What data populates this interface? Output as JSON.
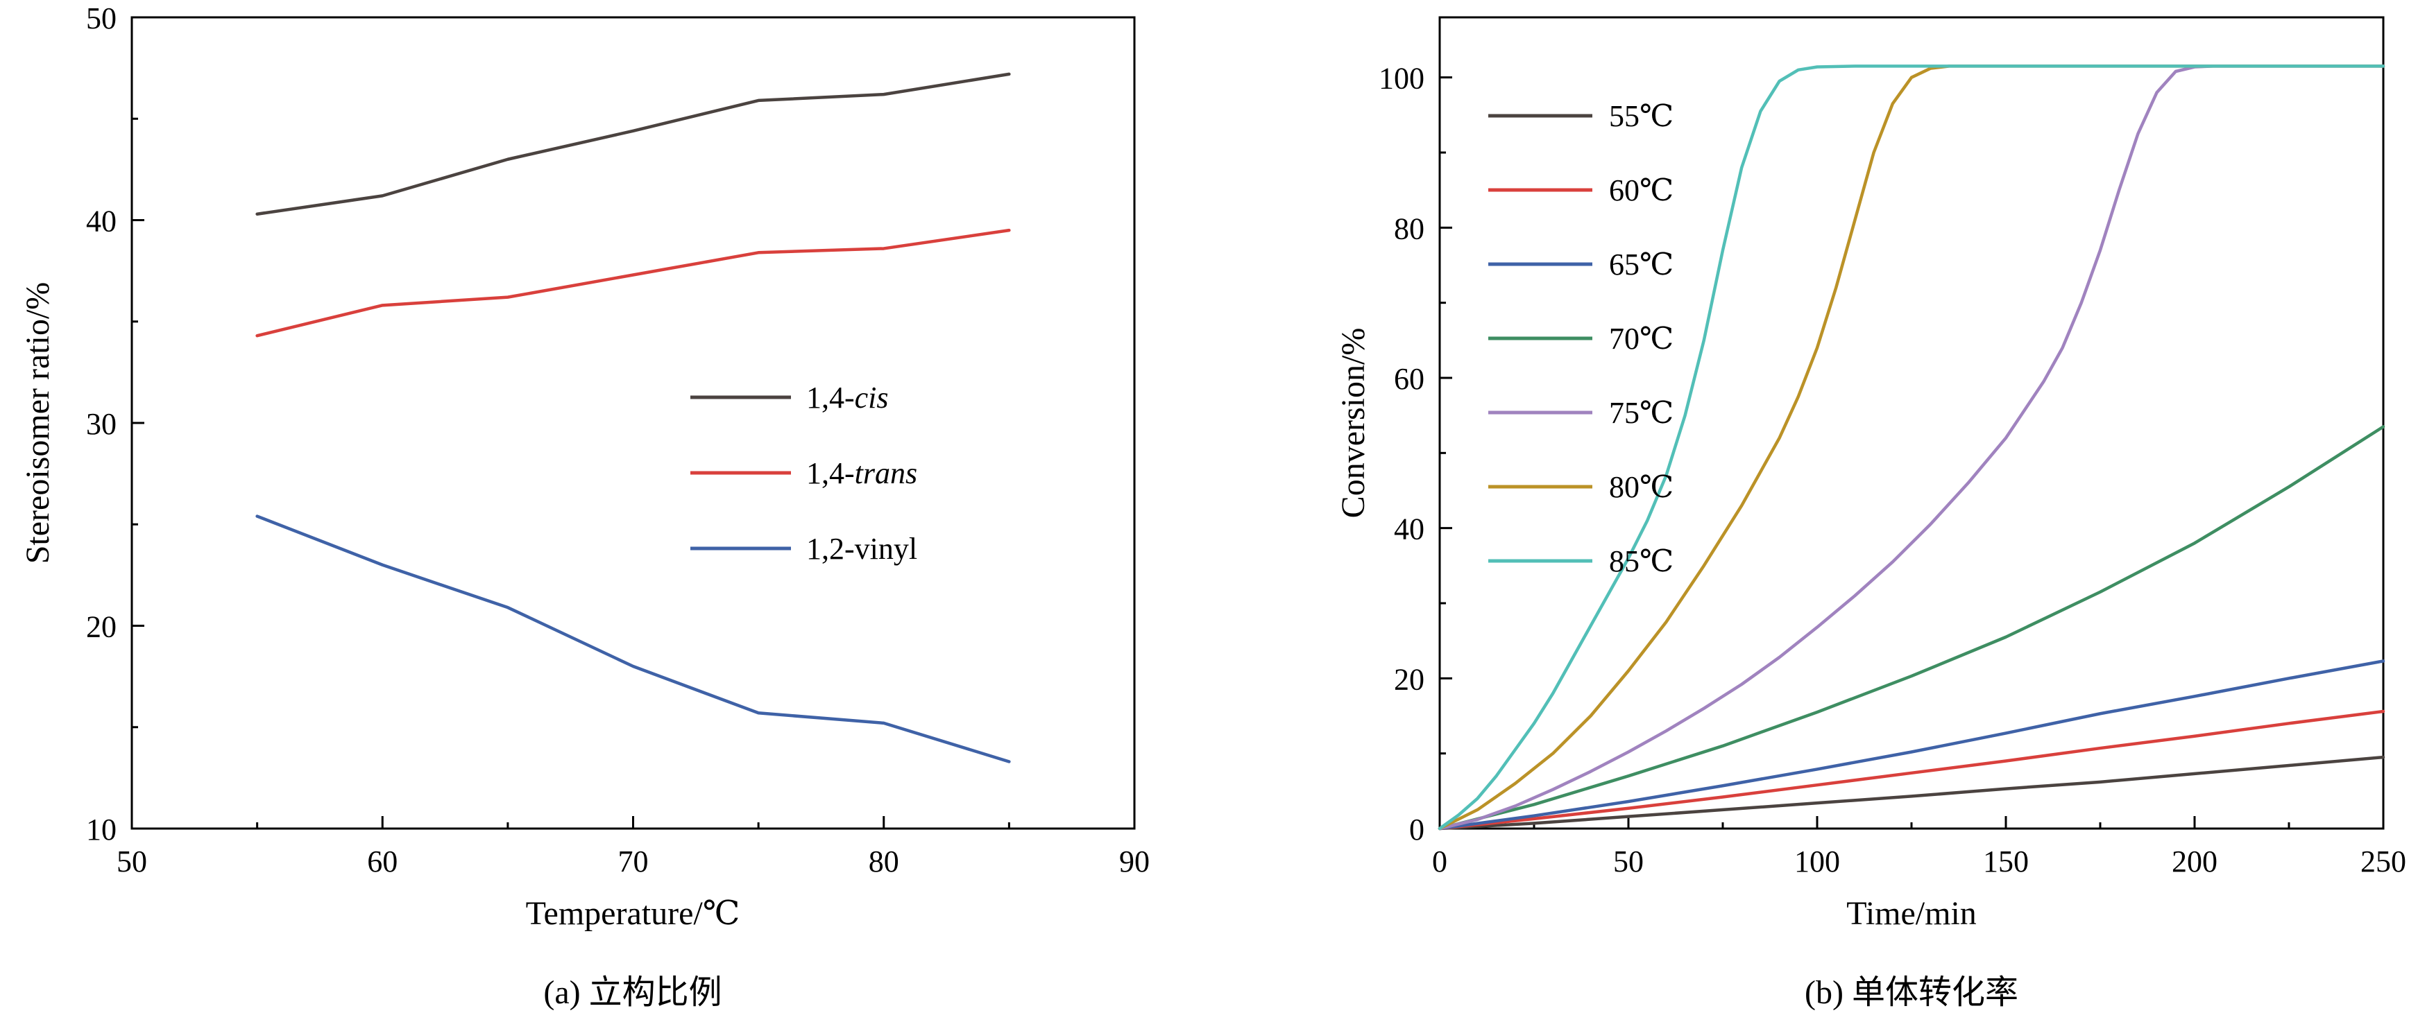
{
  "figure": {
    "background": "#ffffff",
    "text_color": "#000000",
    "panels": [
      {
        "id": "a",
        "caption": "(a) 立构比例",
        "xlabel": "Temperature/℃",
        "ylabel": "Stereoisomer ratio/%"
      },
      {
        "id": "b",
        "caption": "(b) 单体转化率",
        "xlabel": "Time/min",
        "ylabel": "Conversion/%"
      }
    ]
  },
  "chart_data": [
    {
      "type": "line",
      "title": "",
      "xlabel": "Temperature/℃",
      "ylabel": "Stereoisomer ratio/%",
      "xlim": [
        50,
        90
      ],
      "ylim": [
        10,
        50
      ],
      "xticks": [
        50,
        60,
        70,
        80,
        90
      ],
      "yticks": [
        10,
        20,
        30,
        40,
        50
      ],
      "grid": false,
      "legend_position": "inside-center-right",
      "x": [
        55,
        60,
        65,
        70,
        75,
        80,
        85
      ],
      "series": [
        {
          "name": "1,4-cis",
          "label_plain": "1,4-",
          "label_italic": "cis",
          "color": "#4b4340",
          "values": [
            40.3,
            41.2,
            43.0,
            44.4,
            45.9,
            46.2,
            47.2
          ]
        },
        {
          "name": "1,4-trans",
          "label_plain": "1,4-",
          "label_italic": "trans",
          "color": "#d9403c",
          "values": [
            34.3,
            35.8,
            36.2,
            37.3,
            38.4,
            38.6,
            39.5
          ]
        },
        {
          "name": "1,2-vinyl",
          "label_plain": "1,2-vinyl",
          "label_italic": "",
          "color": "#3f62a7",
          "values": [
            25.4,
            23.0,
            20.9,
            18.0,
            15.7,
            15.2,
            13.3
          ]
        }
      ]
    },
    {
      "type": "line",
      "title": "",
      "xlabel": "Time/min",
      "ylabel": "Conversion/%",
      "xlim": [
        0,
        250
      ],
      "ylim": [
        0,
        108
      ],
      "xticks": [
        0,
        50,
        100,
        150,
        200,
        250
      ],
      "yticks": [
        0,
        20,
        40,
        60,
        80,
        100
      ],
      "grid": false,
      "legend_position": "inside-upper-left",
      "series": [
        {
          "name": "55℃",
          "label_plain": "55℃",
          "label_italic": "",
          "color": "#4b4340",
          "points": [
            [
              0,
              0
            ],
            [
              25,
              0.7
            ],
            [
              50,
              1.6
            ],
            [
              75,
              2.5
            ],
            [
              100,
              3.4
            ],
            [
              125,
              4.3
            ],
            [
              150,
              5.3
            ],
            [
              175,
              6.2
            ],
            [
              200,
              7.3
            ],
            [
              225,
              8.4
            ],
            [
              250,
              9.5
            ]
          ]
        },
        {
          "name": "60℃",
          "label_plain": "60℃",
          "label_italic": "",
          "color": "#d9403c",
          "points": [
            [
              0,
              0
            ],
            [
              25,
              1.3
            ],
            [
              50,
              2.7
            ],
            [
              75,
              4.2
            ],
            [
              100,
              5.8
            ],
            [
              125,
              7.4
            ],
            [
              150,
              9.0
            ],
            [
              175,
              10.7
            ],
            [
              200,
              12.3
            ],
            [
              225,
              14.0
            ],
            [
              250,
              15.6
            ]
          ]
        },
        {
          "name": "65℃",
          "label_plain": "65℃",
          "label_italic": "",
          "color": "#3f62a7",
          "points": [
            [
              0,
              0
            ],
            [
              25,
              1.7
            ],
            [
              50,
              3.6
            ],
            [
              75,
              5.7
            ],
            [
              100,
              7.9
            ],
            [
              125,
              10.2
            ],
            [
              150,
              12.7
            ],
            [
              175,
              15.3
            ],
            [
              200,
              17.6
            ],
            [
              225,
              20.0
            ],
            [
              250,
              22.3
            ]
          ]
        },
        {
          "name": "70℃",
          "label_plain": "70℃",
          "label_italic": "",
          "color": "#3e8e62",
          "points": [
            [
              0,
              0
            ],
            [
              25,
              3.2
            ],
            [
              50,
              7.0
            ],
            [
              75,
              11.0
            ],
            [
              100,
              15.5
            ],
            [
              125,
              20.3
            ],
            [
              150,
              25.5
            ],
            [
              175,
              31.5
            ],
            [
              200,
              38.0
            ],
            [
              225,
              45.5
            ],
            [
              250,
              53.5
            ]
          ]
        },
        {
          "name": "75℃",
          "label_plain": "75℃",
          "label_italic": "",
          "color": "#a083bf",
          "points": [
            [
              0,
              0
            ],
            [
              10,
              1.2
            ],
            [
              20,
              3.0
            ],
            [
              30,
              5.2
            ],
            [
              40,
              7.6
            ],
            [
              50,
              10.2
            ],
            [
              60,
              13.0
            ],
            [
              70,
              16.0
            ],
            [
              80,
              19.2
            ],
            [
              90,
              22.8
            ],
            [
              100,
              26.8
            ],
            [
              110,
              31.0
            ],
            [
              120,
              35.5
            ],
            [
              130,
              40.5
            ],
            [
              140,
              46.0
            ],
            [
              150,
              52.0
            ],
            [
              160,
              59.5
            ],
            [
              165,
              64.0
            ],
            [
              170,
              70.0
            ],
            [
              175,
              77.0
            ],
            [
              180,
              85.0
            ],
            [
              185,
              92.5
            ],
            [
              190,
              98.0
            ],
            [
              195,
              100.8
            ],
            [
              200,
              101.4
            ],
            [
              205,
              101.5
            ],
            [
              250,
              101.5
            ]
          ]
        },
        {
          "name": "80℃",
          "label_plain": "80℃",
          "label_italic": "",
          "color": "#bb9227",
          "points": [
            [
              0,
              0
            ],
            [
              10,
              2.5
            ],
            [
              20,
              6.0
            ],
            [
              30,
              10.0
            ],
            [
              40,
              15.0
            ],
            [
              50,
              21.0
            ],
            [
              60,
              27.5
            ],
            [
              70,
              35.0
            ],
            [
              80,
              43.0
            ],
            [
              90,
              52.0
            ],
            [
              95,
              57.5
            ],
            [
              100,
              64.0
            ],
            [
              105,
              72.0
            ],
            [
              110,
              81.0
            ],
            [
              115,
              90.0
            ],
            [
              120,
              96.5
            ],
            [
              125,
              100.0
            ],
            [
              130,
              101.2
            ],
            [
              135,
              101.5
            ],
            [
              250,
              101.5
            ]
          ]
        },
        {
          "name": "85℃",
          "label_plain": "85℃",
          "label_italic": "",
          "color": "#52bfb7",
          "points": [
            [
              0,
              0
            ],
            [
              5,
              1.8
            ],
            [
              10,
              4.0
            ],
            [
              15,
              7.0
            ],
            [
              20,
              10.5
            ],
            [
              25,
              14.0
            ],
            [
              30,
              18.0
            ],
            [
              35,
              22.5
            ],
            [
              40,
              27.0
            ],
            [
              45,
              31.5
            ],
            [
              50,
              36.0
            ],
            [
              55,
              41.0
            ],
            [
              60,
              47.0
            ],
            [
              65,
              55.0
            ],
            [
              70,
              65.0
            ],
            [
              75,
              77.0
            ],
            [
              80,
              88.0
            ],
            [
              85,
              95.5
            ],
            [
              90,
              99.5
            ],
            [
              95,
              101.0
            ],
            [
              100,
              101.4
            ],
            [
              110,
              101.5
            ],
            [
              250,
              101.5
            ]
          ]
        }
      ]
    }
  ]
}
